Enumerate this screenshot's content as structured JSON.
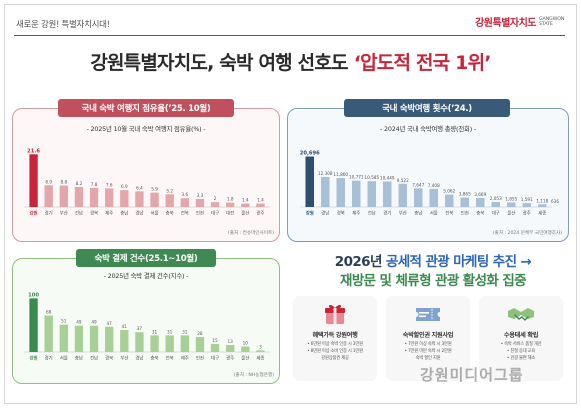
{
  "header": {
    "tagline": "새로운 강원! 특별자치시대!",
    "logo_text": "강원특별자치도",
    "logo_en": "GANGWON STATE"
  },
  "headline": {
    "prefix": "강원특별자치도, 숙박 여행 선호도",
    "emphasis": "‘압도적 전국 1위’"
  },
  "colors": {
    "red": "#c8243a",
    "pink_bar": "#e2a6ab",
    "navy": "#2f4f6f",
    "blue_bar": "#a9bfd6",
    "green": "#3b8a4f",
    "green_bar": "#a8cf95"
  },
  "panels": {
    "share": {
      "tag": "국내 숙박 여행지 점유율(’25. 10월)",
      "subtitle": "- 2025년 10월 국내 숙박 여행지 점유율(%) -",
      "source": "(출처 : 컨슈머인사이트)"
    },
    "trips": {
      "tag": "국내 숙박여행 횟수(’24.)",
      "subtitle": "- 2024년 국내 숙박여행 총량(천회) -",
      "source": "(출처 : 2024 문체부 국민여행조사)"
    },
    "payments": {
      "tag": "숙박 결제 건수(25.1~10월)",
      "subtitle": "- 2025년 숙박 결제 건수(지수) -",
      "source": "(출처 : NH농협은행)"
    }
  },
  "promo": {
    "line1_year": "2026년",
    "line1_blue": "공세적 관광 마케팅 추진 →",
    "line2_green": "재방문 및 체류형 관광 활성화 집중",
    "cards": [
      {
        "icon": "gift-box-icon",
        "title": "혜택가득 강원여행",
        "lines": [
          "• 6만원 이상 숙박 인증 시 3만원",
          "• 8만원 이상 소비 인증 시 1만원",
          "강원상품권 제공"
        ]
      },
      {
        "icon": "coupon-ticket-icon",
        "title": "숙박할인권 지원사업",
        "lines": [
          "• 7만원 이상 숙박 시 3만원",
          "• 7만원 미만 숙박 시 2만원",
          "숙박 할인 지원"
        ]
      },
      {
        "icon": "handshake-icon",
        "title": "수용태세 확립",
        "lines": [
          "• 숙박 서비스 품질 개선",
          "• 친절 응대 교육",
          "• 관광 불편 해소"
        ]
      }
    ]
  },
  "watermark": "강원미디어그룹",
  "chart_data": [
    {
      "type": "bar",
      "title": "2025년 10월 국내 숙박 여행지 점유율(%)",
      "categories": [
        "강원",
        "경기",
        "부산",
        "전남",
        "경북",
        "제주",
        "충남",
        "경남",
        "서울",
        "충북",
        "전북",
        "인천",
        "대구",
        "대전",
        "울산",
        "광주"
      ],
      "values": [
        21.6,
        8.9,
        8.8,
        8.2,
        7.8,
        7.6,
        6.9,
        6.4,
        5.9,
        5.2,
        3.6,
        3.3,
        2.0,
        1.8,
        1.4,
        1.4
      ],
      "highlight_index": 0,
      "ylim": [
        0,
        25
      ]
    },
    {
      "type": "bar",
      "title": "2024년 국내 숙박여행 총량(천회)",
      "categories": [
        "강원",
        "경남",
        "경북",
        "제주",
        "전남",
        "경기",
        "부산",
        "충남",
        "서울",
        "전북",
        "인천",
        "충북",
        "대구",
        "울산",
        "광주",
        "세종"
      ],
      "values": [
        20696,
        12308,
        11860,
        10771,
        10585,
        10449,
        9522,
        7647,
        7408,
        5062,
        3865,
        3669,
        2053,
        1855,
        1591,
        1118
      ],
      "value_labels": [
        "20,696",
        "12,308",
        "11,860",
        "10,771",
        "10,585",
        "10,449",
        "9,522",
        "7,647",
        "7,408",
        "5,062",
        "3,865",
        "3,669",
        "2,053",
        "1,855",
        "1,591",
        "1,118"
      ],
      "trailing_label": "636",
      "highlight_index": 0,
      "ylim": [
        0,
        25000
      ]
    },
    {
      "type": "bar",
      "title": "2025년 숙박 결제 건수(지수)",
      "categories": [
        "강원",
        "경기",
        "서울",
        "충남",
        "전남",
        "경북",
        "부산",
        "경남",
        "충북",
        "전북",
        "제주",
        "인천",
        "대구",
        "광주",
        "울산",
        "세종"
      ],
      "values": [
        100,
        68,
        51,
        49,
        49,
        47,
        41,
        37,
        31,
        31,
        31,
        28,
        15,
        13,
        10,
        3
      ],
      "highlight_index": 0,
      "ylim": [
        0,
        110
      ]
    }
  ]
}
